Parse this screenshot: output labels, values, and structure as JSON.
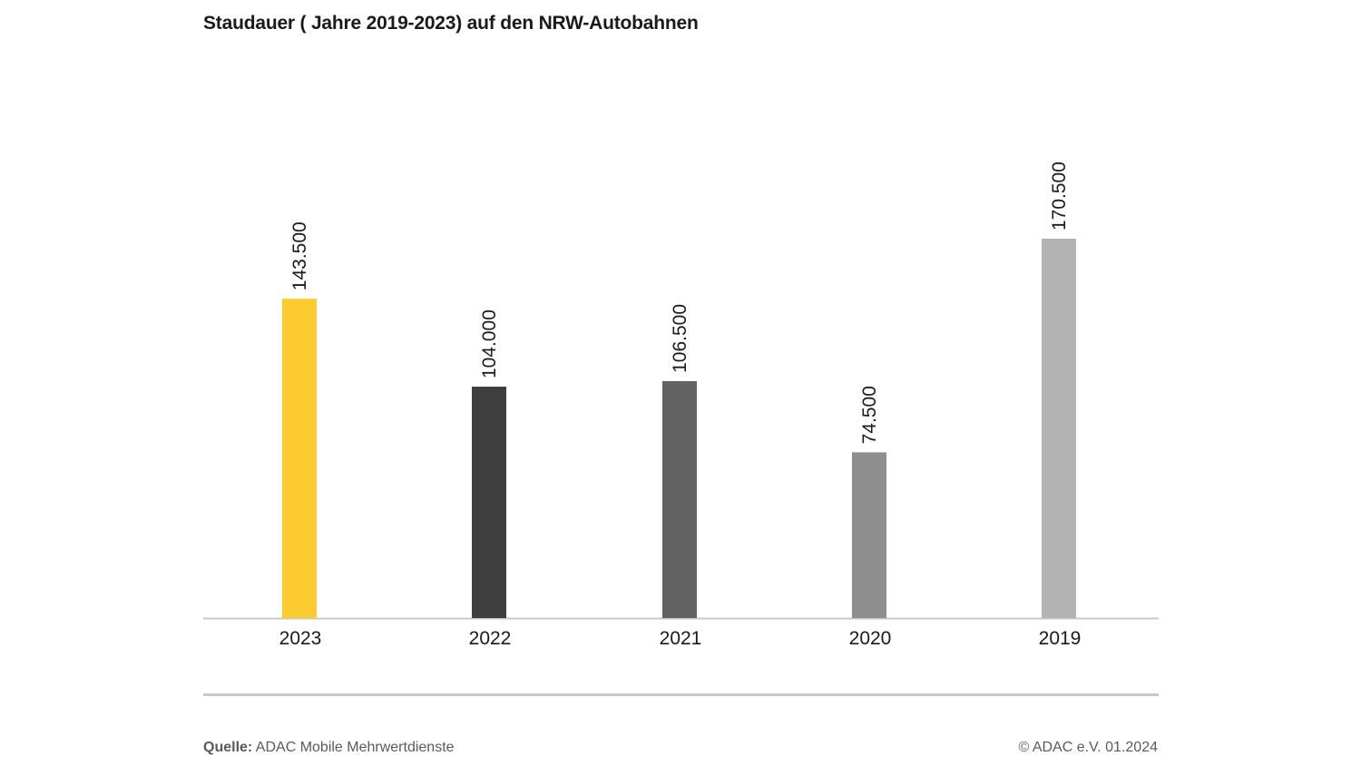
{
  "chart_data": {
    "type": "bar",
    "title": "Staudauer ( Jahre 2019-2023) auf den NRW-Autobahnen",
    "xlabel": "",
    "ylabel": "",
    "ylim": [
      0,
      170500
    ],
    "grid": false,
    "legend": "none",
    "categories": [
      "2023",
      "2022",
      "2021",
      "2020",
      "2019"
    ],
    "values": [
      143500,
      104000,
      106500,
      74500,
      170500
    ],
    "value_labels": [
      "143.500",
      "104.000",
      "106.500",
      "74.500",
      "170.500"
    ],
    "colors": [
      "#fccb30",
      "#3f3f3f",
      "#636363",
      "#8e8e8e",
      "#b3b3b3"
    ]
  },
  "footer": {
    "source_label": "Quelle:",
    "source_text": "ADAC Mobile Mehrwertdienste",
    "copyright": "© ADAC e.V. 01.2024"
  }
}
